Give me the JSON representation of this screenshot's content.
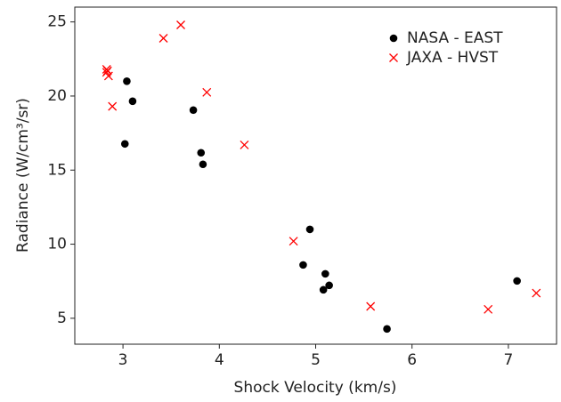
{
  "chart_data": {
    "type": "scatter",
    "x_label": "Shock Velocity (km/s)",
    "y_label": "Radiance (W/cm³/sr)",
    "xlim": [
      2.5,
      7.5
    ],
    "xticks": [
      3,
      4,
      5,
      6,
      7
    ],
    "ylim": [
      3.25,
      26
    ],
    "yticks": [
      5,
      10,
      15,
      20,
      25
    ],
    "grid": false,
    "legend": "upper right",
    "series": [
      {
        "name": "NASA - EAST",
        "color": "#000000",
        "marker": "circle",
        "x": [
          3.04,
          3.1,
          3.02,
          3.73,
          3.81,
          3.83,
          4.94,
          4.87,
          5.1,
          5.14,
          5.08,
          5.74,
          7.09
        ],
        "values": [
          21.0,
          19.65,
          16.77,
          19.05,
          16.17,
          15.39,
          11.0,
          8.6,
          8.0,
          7.22,
          6.92,
          4.28,
          7.52
        ]
      },
      {
        "name": "JAXA - HVST",
        "color": "#ff0000",
        "marker": "cross",
        "x": [
          2.83,
          2.84,
          2.83,
          2.85,
          2.89,
          3.42,
          3.6,
          3.87,
          4.26,
          4.77,
          5.57,
          6.79,
          7.29
        ],
        "values": [
          21.8,
          21.7,
          21.6,
          21.35,
          19.3,
          23.9,
          24.8,
          20.25,
          16.7,
          10.2,
          5.8,
          5.6,
          6.7
        ]
      }
    ]
  }
}
